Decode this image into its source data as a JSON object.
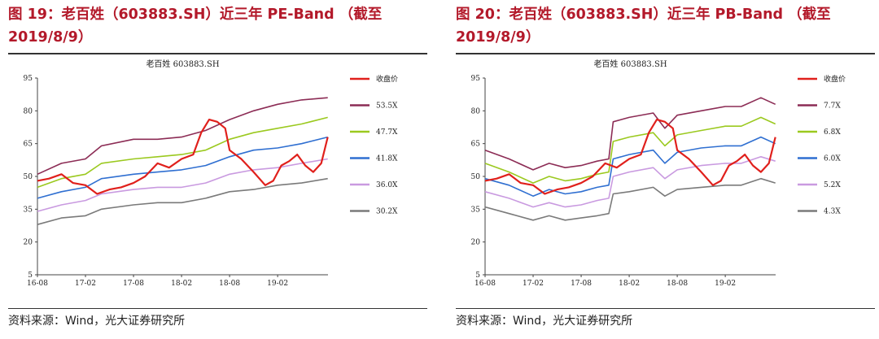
{
  "panels": [
    {
      "figure_title": "图 19：老百姓（603883.SH）近三年 PE-Band （截至2019/8/9）",
      "source": "资料来源：Wind，光大证券研究所",
      "chart_data": {
        "type": "line",
        "title": "老百姓 603883.SH",
        "xlabel": "",
        "ylabel": "",
        "ylim": [
          5,
          95
        ],
        "yticks": [
          5,
          20,
          35,
          50,
          65,
          80,
          95
        ],
        "x_ticks": [
          "16-08",
          "17-02",
          "17-08",
          "18-02",
          "18-08",
          "19-02"
        ],
        "xlim": [
          "2016-08",
          "2019-08"
        ],
        "grid": false,
        "legend_placement": "right",
        "series": [
          {
            "name": "收盘价",
            "color": "#e0201c",
            "width": 2.2,
            "x": [
              "2016-08-01",
              "2016-09-15",
              "2016-11-01",
              "2016-12-15",
              "2017-02-01",
              "2017-03-15",
              "2017-05-01",
              "2017-06-15",
              "2017-08-01",
              "2017-09-15",
              "2017-11-01",
              "2017-12-15",
              "2018-02-01",
              "2018-03-15",
              "2018-04-15",
              "2018-05-15",
              "2018-06-15",
              "2018-07-15",
              "2018-08-01",
              "2018-09-15",
              "2018-11-01",
              "2018-12-15",
              "2019-01-15",
              "2019-02-15",
              "2019-03-15",
              "2019-04-15",
              "2019-05-15",
              "2019-06-15",
              "2019-07-15",
              "2019-08-09"
            ],
            "y": [
              48,
              49,
              51,
              47,
              46,
              42,
              44,
              45,
              47,
              50,
              56,
              54,
              58,
              60,
              70,
              76,
              75,
              72,
              62,
              58,
              52,
              46,
              48,
              55,
              57,
              60,
              55,
              52,
              56,
              68
            ]
          },
          {
            "name": "53.5X",
            "color": "#8c2c55",
            "width": 1.6,
            "x": [
              "2016-08-01",
              "2016-11-01",
              "2017-02-01",
              "2017-04-01",
              "2017-08-01",
              "2017-11-01",
              "2018-02-01",
              "2018-05-01",
              "2018-08-01",
              "2018-11-01",
              "2019-02-01",
              "2019-05-01",
              "2019-08-09"
            ],
            "y": [
              51,
              56,
              58,
              64,
              67,
              67,
              68,
              71,
              76,
              80,
              83,
              85,
              86
            ]
          },
          {
            "name": "47.7X",
            "color": "#9bc91f",
            "width": 1.6,
            "x": [
              "2016-08-01",
              "2016-11-01",
              "2017-02-01",
              "2017-04-01",
              "2017-08-01",
              "2017-11-01",
              "2018-02-01",
              "2018-05-01",
              "2018-08-01",
              "2018-11-01",
              "2019-02-01",
              "2019-05-01",
              "2019-08-09"
            ],
            "y": [
              45,
              49,
              51,
              56,
              58,
              59,
              60,
              62,
              67,
              70,
              72,
              74,
              77
            ]
          },
          {
            "name": "41.8X",
            "color": "#2f6fd1",
            "width": 1.6,
            "x": [
              "2016-08-01",
              "2016-11-01",
              "2017-02-01",
              "2017-04-01",
              "2017-08-01",
              "2017-11-01",
              "2018-02-01",
              "2018-05-01",
              "2018-08-01",
              "2018-11-01",
              "2019-02-01",
              "2019-05-01",
              "2019-08-09"
            ],
            "y": [
              40,
              43,
              45,
              49,
              51,
              52,
              53,
              55,
              59,
              62,
              63,
              65,
              68
            ]
          },
          {
            "name": "36.0X",
            "color": "#c99ae0",
            "width": 1.6,
            "x": [
              "2016-08-01",
              "2016-11-01",
              "2017-02-01",
              "2017-04-01",
              "2017-08-01",
              "2017-11-01",
              "2018-02-01",
              "2018-05-01",
              "2018-08-01",
              "2018-11-01",
              "2019-02-01",
              "2019-05-01",
              "2019-08-09"
            ],
            "y": [
              34,
              37,
              39,
              42,
              44,
              45,
              45,
              47,
              51,
              53,
              54,
              56,
              58
            ]
          },
          {
            "name": "30.2X",
            "color": "#7a7a7a",
            "width": 1.6,
            "x": [
              "2016-08-01",
              "2016-11-01",
              "2017-02-01",
              "2017-04-01",
              "2017-08-01",
              "2017-11-01",
              "2018-02-01",
              "2018-05-01",
              "2018-08-01",
              "2018-11-01",
              "2019-02-01",
              "2019-05-01",
              "2019-08-09"
            ],
            "y": [
              28,
              31,
              32,
              35,
              37,
              38,
              38,
              40,
              43,
              44,
              46,
              47,
              49
            ]
          }
        ]
      }
    },
    {
      "figure_title": "图 20：老百姓（603883.SH）近三年 PB-Band （截至2019/8/9）",
      "source": "资料来源：Wind，光大证券研究所",
      "chart_data": {
        "type": "line",
        "title": "老百姓 603883.SH",
        "xlabel": "",
        "ylabel": "",
        "ylim": [
          5,
          95
        ],
        "yticks": [
          5,
          20,
          35,
          50,
          65,
          80,
          95
        ],
        "x_ticks": [
          "16-08",
          "17-02",
          "17-08",
          "18-02",
          "18-08",
          "19-02"
        ],
        "xlim": [
          "2016-08",
          "2019-08"
        ],
        "grid": false,
        "legend_placement": "right",
        "series": [
          {
            "name": "收盘价",
            "color": "#e0201c",
            "width": 2.2,
            "x": [
              "2016-08-01",
              "2016-09-15",
              "2016-11-01",
              "2016-12-15",
              "2017-02-01",
              "2017-03-15",
              "2017-05-01",
              "2017-06-15",
              "2017-08-01",
              "2017-09-15",
              "2017-11-01",
              "2017-12-15",
              "2018-02-01",
              "2018-03-15",
              "2018-04-15",
              "2018-05-15",
              "2018-06-15",
              "2018-07-15",
              "2018-08-01",
              "2018-09-15",
              "2018-11-01",
              "2018-12-15",
              "2019-01-15",
              "2019-02-15",
              "2019-03-15",
              "2019-04-15",
              "2019-05-15",
              "2019-06-15",
              "2019-07-15",
              "2019-08-09"
            ],
            "y": [
              48,
              49,
              51,
              47,
              46,
              42,
              44,
              45,
              47,
              50,
              56,
              54,
              58,
              60,
              70,
              76,
              75,
              72,
              62,
              58,
              52,
              46,
              48,
              55,
              57,
              60,
              55,
              52,
              56,
              68
            ]
          },
          {
            "name": "7.7X",
            "color": "#8c2c55",
            "width": 1.6,
            "x": [
              "2016-08-01",
              "2016-11-01",
              "2017-02-01",
              "2017-04-01",
              "2017-06-01",
              "2017-08-01",
              "2017-10-01",
              "2017-11-15",
              "2017-12-01",
              "2018-02-01",
              "2018-05-01",
              "2018-06-15",
              "2018-08-01",
              "2018-11-01",
              "2019-02-01",
              "2019-04-01",
              "2019-06-15",
              "2019-08-09"
            ],
            "y": [
              62,
              58,
              53,
              56,
              54,
              55,
              57,
              58,
              75,
              77,
              79,
              72,
              78,
              80,
              82,
              82,
              86,
              83
            ]
          },
          {
            "name": "6.8X",
            "color": "#9bc91f",
            "width": 1.6,
            "x": [
              "2016-08-01",
              "2016-11-01",
              "2017-02-01",
              "2017-04-01",
              "2017-06-01",
              "2017-08-01",
              "2017-10-01",
              "2017-11-15",
              "2017-12-01",
              "2018-02-01",
              "2018-05-01",
              "2018-06-15",
              "2018-08-01",
              "2018-11-01",
              "2019-02-01",
              "2019-04-01",
              "2019-06-15",
              "2019-08-09"
            ],
            "y": [
              56,
              52,
              47,
              50,
              48,
              49,
              51,
              52,
              66,
              68,
              70,
              64,
              69,
              71,
              73,
              73,
              77,
              74
            ]
          },
          {
            "name": "6.0X",
            "color": "#2f6fd1",
            "width": 1.6,
            "x": [
              "2016-08-01",
              "2016-11-01",
              "2017-02-01",
              "2017-04-01",
              "2017-06-01",
              "2017-08-01",
              "2017-10-01",
              "2017-11-15",
              "2017-12-01",
              "2018-02-01",
              "2018-05-01",
              "2018-06-15",
              "2018-08-01",
              "2018-11-01",
              "2019-02-01",
              "2019-04-01",
              "2019-06-15",
              "2019-08-09"
            ],
            "y": [
              49,
              46,
              41,
              44,
              42,
              43,
              45,
              46,
              58,
              60,
              62,
              56,
              61,
              63,
              64,
              64,
              68,
              65
            ]
          },
          {
            "name": "5.2X",
            "color": "#c99ae0",
            "width": 1.6,
            "x": [
              "2016-08-01",
              "2016-11-01",
              "2017-02-01",
              "2017-04-01",
              "2017-06-01",
              "2017-08-01",
              "2017-10-01",
              "2017-11-15",
              "2017-12-01",
              "2018-02-01",
              "2018-05-01",
              "2018-06-15",
              "2018-08-01",
              "2018-11-01",
              "2019-02-01",
              "2019-04-01",
              "2019-06-15",
              "2019-08-09"
            ],
            "y": [
              43,
              40,
              36,
              38,
              36,
              37,
              39,
              40,
              50,
              52,
              54,
              49,
              53,
              55,
              56,
              56,
              59,
              57
            ]
          },
          {
            "name": "4.3X",
            "color": "#7a7a7a",
            "width": 1.6,
            "x": [
              "2016-08-01",
              "2016-11-01",
              "2017-02-01",
              "2017-04-01",
              "2017-06-01",
              "2017-08-01",
              "2017-10-01",
              "2017-11-15",
              "2017-12-01",
              "2018-02-01",
              "2018-05-01",
              "2018-06-15",
              "2018-08-01",
              "2018-11-01",
              "2019-02-01",
              "2019-04-01",
              "2019-06-15",
              "2019-08-09"
            ],
            "y": [
              36,
              33,
              30,
              32,
              30,
              31,
              32,
              33,
              42,
              43,
              45,
              41,
              44,
              45,
              46,
              46,
              49,
              47
            ]
          }
        ]
      }
    }
  ]
}
